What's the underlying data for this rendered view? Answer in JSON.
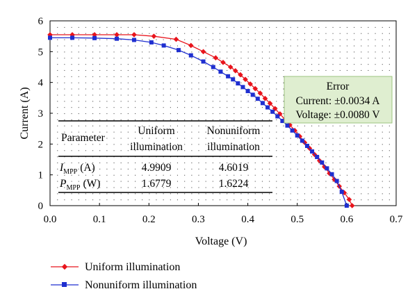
{
  "chart_data": {
    "type": "line",
    "xlabel": "Voltage (V)",
    "ylabel": "Current (A)",
    "xlim": [
      0.0,
      0.7
    ],
    "ylim": [
      0,
      6
    ],
    "x_ticks": [
      "0.0",
      "0.1",
      "0.2",
      "0.3",
      "0.4",
      "0.5",
      "0.6",
      "0.7"
    ],
    "y_ticks": [
      "0",
      "1",
      "2",
      "3",
      "4",
      "5",
      "6"
    ],
    "grid": "dotted",
    "legend_position": "bottom",
    "series": [
      {
        "name": "Uniform illumination",
        "color": "#e8141c",
        "marker": "diamond",
        "x": [
          0.0,
          0.045,
          0.09,
          0.135,
          0.17,
          0.21,
          0.255,
          0.285,
          0.31,
          0.335,
          0.35,
          0.365,
          0.375,
          0.385,
          0.395,
          0.405,
          0.415,
          0.425,
          0.435,
          0.445,
          0.455,
          0.465,
          0.475,
          0.485,
          0.495,
          0.505,
          0.515,
          0.525,
          0.535,
          0.545,
          0.555,
          0.565,
          0.575,
          0.585,
          0.595,
          0.605,
          0.611
        ],
        "y": [
          5.55,
          5.55,
          5.55,
          5.55,
          5.55,
          5.5,
          5.4,
          5.2,
          5.0,
          4.8,
          4.65,
          4.5,
          4.38,
          4.25,
          4.1,
          3.95,
          3.8,
          3.65,
          3.48,
          3.32,
          3.15,
          2.98,
          2.8,
          2.62,
          2.44,
          2.25,
          2.05,
          1.86,
          1.66,
          1.46,
          1.26,
          1.05,
          0.85,
          0.63,
          0.42,
          0.2,
          0.0
        ]
      },
      {
        "name": "Nonuniform illumination",
        "color": "#1f2fd0",
        "marker": "square",
        "x": [
          0.0,
          0.045,
          0.09,
          0.135,
          0.17,
          0.205,
          0.23,
          0.26,
          0.285,
          0.31,
          0.33,
          0.345,
          0.36,
          0.37,
          0.38,
          0.39,
          0.4,
          0.41,
          0.42,
          0.43,
          0.44,
          0.45,
          0.46,
          0.47,
          0.48,
          0.49,
          0.5,
          0.51,
          0.52,
          0.53,
          0.54,
          0.55,
          0.56,
          0.57,
          0.58,
          0.59,
          0.6
        ],
        "y": [
          5.45,
          5.45,
          5.44,
          5.42,
          5.38,
          5.3,
          5.2,
          5.05,
          4.88,
          4.68,
          4.5,
          4.35,
          4.2,
          4.1,
          3.97,
          3.85,
          3.72,
          3.6,
          3.47,
          3.33,
          3.19,
          3.05,
          2.9,
          2.75,
          2.6,
          2.44,
          2.28,
          2.11,
          1.94,
          1.76,
          1.58,
          1.4,
          1.21,
          1.02,
          0.8,
          0.45,
          0.0
        ]
      }
    ],
    "annotation_error": {
      "title": "Error",
      "current": "Current: ±0.0034 A",
      "voltage": "Voltage: ±0.0080 V"
    },
    "table": {
      "header": [
        "Parameter",
        "Uniform illumination",
        "Nonuniform illumination"
      ],
      "rows": [
        {
          "param_main": "I",
          "param_sub": "MPP",
          "param_unit": "(A)",
          "uniform": "4.9909",
          "nonuniform": "4.6019"
        },
        {
          "param_main": "P",
          "param_sub": "MPP",
          "param_unit": "(W)",
          "uniform": "1.6779",
          "nonuniform": "1.6224"
        }
      ]
    }
  },
  "table_labels": {
    "parameter": "Parameter",
    "uniform_l1": "Uniform",
    "uniform_l2": "illumination",
    "nonuniform_l1": "Nonuniform",
    "nonuniform_l2": "illumination",
    "row1_main": "I",
    "row1_sub": "MPP",
    "row1_unit": "(A)",
    "row1_uniform": "4.9909",
    "row1_nonuniform": "4.6019",
    "row2_main": "P",
    "row2_sub": "MPP",
    "row2_unit": "(W)",
    "row2_uniform": "1.6779",
    "row2_nonuniform": "1.6224"
  },
  "legend": {
    "uniform": "Uniform illumination",
    "nonuniform": "Nonuniform illumination"
  },
  "colors": {
    "uniform": "#e8141c",
    "nonuniform": "#1f2fd0",
    "error_box_fill": "#dfeed0",
    "error_box_stroke": "#9cc47f"
  }
}
